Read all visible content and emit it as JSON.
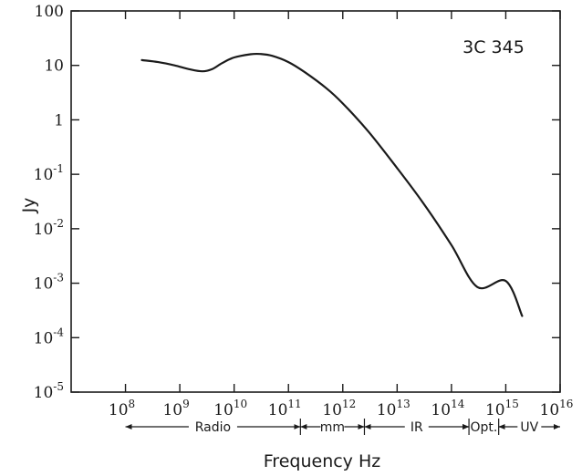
{
  "chart_data": {
    "type": "line",
    "x_scale": "log",
    "y_scale": "log",
    "annotation": "3C 345",
    "xlabel": "Frequency Hz",
    "ylabel": "Jy",
    "xlim": [
      "1e7",
      "1e16"
    ],
    "ylim": [
      "1e-5",
      "1e2"
    ],
    "x_ticks": [
      {
        "base": "10",
        "exp": "8",
        "value": 100000000.0
      },
      {
        "base": "10",
        "exp": "9",
        "value": 1000000000.0
      },
      {
        "base": "10",
        "exp": "10",
        "value": 10000000000.0
      },
      {
        "base": "10",
        "exp": "11",
        "value": 100000000000.0
      },
      {
        "base": "10",
        "exp": "12",
        "value": 1000000000000.0
      },
      {
        "base": "10",
        "exp": "13",
        "value": 10000000000000.0
      },
      {
        "base": "10",
        "exp": "14",
        "value": 100000000000000.0
      },
      {
        "base": "10",
        "exp": "15",
        "value": 1000000000000000.0
      },
      {
        "base": "10",
        "exp": "16",
        "value": 1e+16
      }
    ],
    "y_ticks": [
      {
        "base": "100",
        "exp": "",
        "value": 100
      },
      {
        "base": "10",
        "exp": "",
        "value": 10
      },
      {
        "base": "1",
        "exp": "",
        "value": 1
      },
      {
        "base": "10",
        "exp": "-1",
        "value": 0.1
      },
      {
        "base": "10",
        "exp": "-2",
        "value": 0.01
      },
      {
        "base": "10",
        "exp": "-3",
        "value": 0.001
      },
      {
        "base": "10",
        "exp": "-4",
        "value": 0.0001
      },
      {
        "base": "10",
        "exp": "-5",
        "value": 1e-05
      }
    ],
    "bands": [
      {
        "label": "Radio",
        "from": 100000000.0,
        "to": 166000000000.0
      },
      {
        "label": "mm",
        "from": 166000000000.0,
        "to": 2500000000000.0
      },
      {
        "label": "IR",
        "from": 2500000000000.0,
        "to": 210000000000000.0
      },
      {
        "label": "Opt.",
        "from": 210000000000000.0,
        "to": 740000000000000.0
      },
      {
        "label": "UV",
        "from": 740000000000000.0,
        "to": 1e+16
      }
    ],
    "series": [
      {
        "x": [
          200000000.0,
          400000000.0,
          800000000.0,
          1500000000.0,
          2600000000.0,
          4000000000.0,
          6000000000.0,
          10000000000.0,
          20000000000.0,
          30000000000.0,
          50000000000.0,
          100000000000.0,
          200000000000.0,
          500000000000.0,
          1000000000000.0,
          3000000000000.0,
          10000000000000.0,
          30000000000000.0,
          100000000000000.0,
          300000000000000.0,
          1000000000000000.0,
          2000000000000000.0
        ],
        "y": [
          12.5,
          11.5,
          10.0,
          8.5,
          7.8,
          8.6,
          11.0,
          14.0,
          16.0,
          16.2,
          15.0,
          11.5,
          7.5,
          3.8,
          2.0,
          0.6,
          0.13,
          0.03,
          0.005,
          0.00085,
          0.0011,
          0.00025
        ]
      }
    ]
  }
}
